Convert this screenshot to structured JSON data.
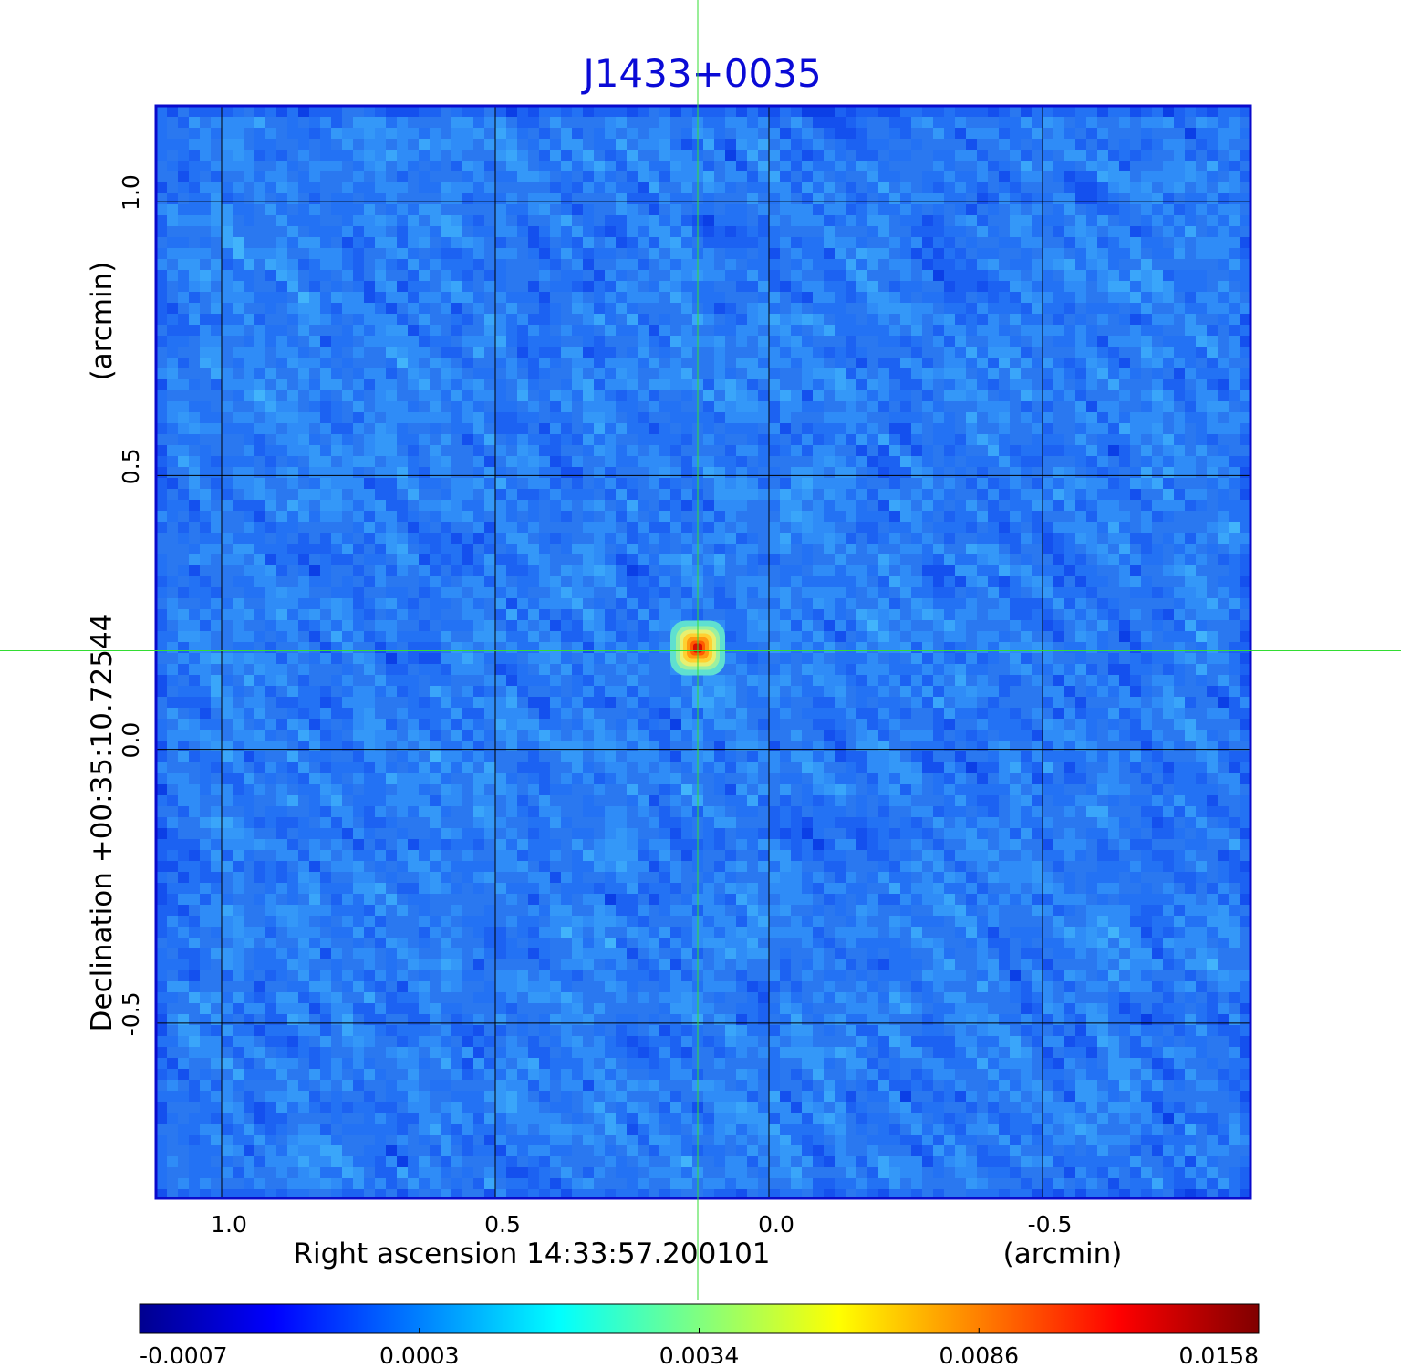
{
  "chart_data": {
    "type": "heatmap",
    "title": "J1433+0035",
    "xlabel": "Right ascension  14:33:57.200101",
    "xunit": "(arcmin)",
    "ylabel": "Declination  +00:35:10.72544",
    "yunit": "(arcmin)",
    "x_ticks": [
      1.0,
      0.5,
      0.0,
      -0.5
    ],
    "x_tick_labels": [
      "1.0",
      "0.5",
      "0.0",
      "-0.5"
    ],
    "y_ticks": [
      1.0,
      0.5,
      0.0,
      -0.5
    ],
    "y_tick_labels": [
      "1.0",
      "0.5",
      "0.0",
      "-0.5"
    ],
    "xlim": [
      1.12,
      -0.88
    ],
    "ylim": [
      -0.82,
      1.175
    ],
    "grid": true,
    "source": {
      "x": 0.13,
      "y": 0.185,
      "peak": 0.0158
    },
    "crosshair": {
      "x": 0.13,
      "y": 0.18
    },
    "colorbar": {
      "tick_labels": [
        "-0.0007",
        "0.0003",
        "0.0034",
        "0.0086",
        "0.0158"
      ],
      "colormap": [
        "#00008f",
        "#0000ff",
        "#0080ff",
        "#00ffff",
        "#80ff80",
        "#ffff00",
        "#ff8000",
        "#ff0000",
        "#800000"
      ]
    },
    "colors": {
      "title": "#0a0ad6",
      "frame": "#0a0acc",
      "grid": "#000000",
      "crosshair": "#33dd33"
    }
  }
}
